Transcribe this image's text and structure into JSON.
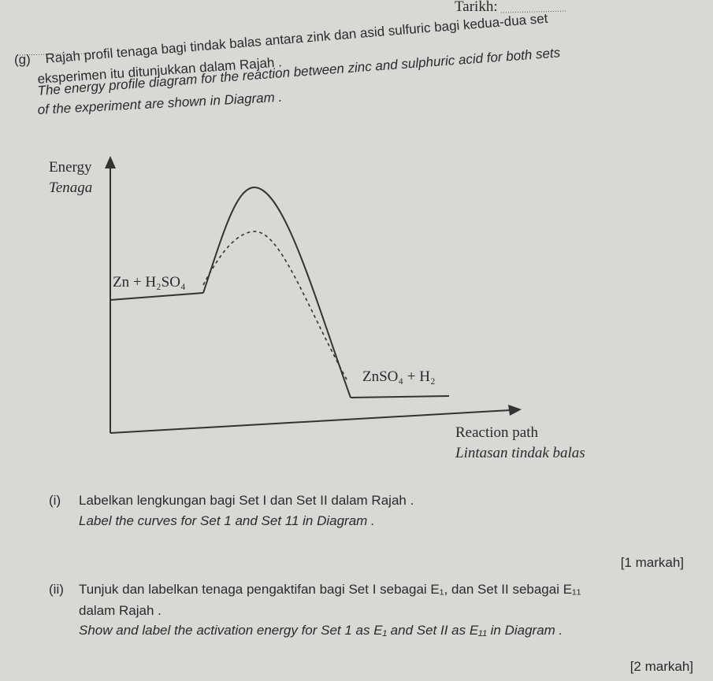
{
  "header": {
    "date_label": "Tarikh:"
  },
  "question": {
    "number": "(g)",
    "lines": [
      "Rajah profil tenaga bagi tindak balas antara zink dan asid sulfuric bagi kedua-dua set",
      "eksperimen itu ditunjukkan dalam Rajah .",
      "The energy profile diagram for the reaction between zinc and sulphuric acid for both sets",
      "of the experiment are shown in Diagram ."
    ]
  },
  "diagram": {
    "y_axis_label": "Energy",
    "y_axis_label_ms": "Tenaga",
    "reactants": "Zn + H₂SO₄",
    "products": "ZnSO₄ + H₂",
    "x_axis_label": "Reaction path",
    "x_axis_label_ms": "Lintasan tindak balas"
  },
  "parts": [
    {
      "number": "(i)",
      "lines": [
        "Labelkan lengkungan bagi Set I dan Set II dalam Rajah .",
        "Label the curves for Set 1 and Set 11 in Diagram ."
      ],
      "marks": "[1 markah]"
    },
    {
      "number": "(ii)",
      "lines": [
        "Tunjuk dan labelkan tenaga pengaktifan bagi Set I sebagai E₁, dan Set II sebagai E₁₁",
        "dalam Rajah .",
        "Show and label the activation energy for Set 1 as E₁ and Set II as E₁₁ in Diagram ."
      ],
      "marks": "[2 markah]"
    }
  ]
}
